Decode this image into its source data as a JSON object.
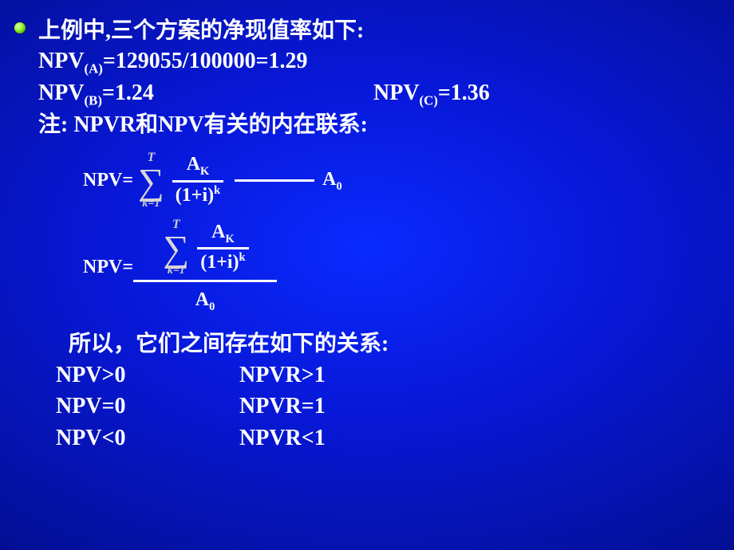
{
  "lines": {
    "intro": "上例中,三个方案的净现值率如下:",
    "npv_a_label": "NPV",
    "npv_a_sub": "(A)",
    "npv_a_value": "=129055/100000=1.29",
    "npv_b_label": "NPV",
    "npv_b_sub": "(B)",
    "npv_b_value": "=1.24",
    "npv_c_label": "NPV",
    "npv_c_sub": "(C)",
    "npv_c_value": "=1.36",
    "note": "注: NPVR和NPV有关的内在联系:"
  },
  "formula": {
    "lhs": "NPV=",
    "sigma_top": "T",
    "sigma_sym": "∑",
    "sigma_bot": "k=1",
    "frac_num_base": "A",
    "frac_num_sub": "K",
    "frac_den1": "(1+i)",
    "frac_den_sup": "k",
    "minus_a0_base": "A",
    "minus_a0_sub": "0"
  },
  "formula2": {
    "lhs": "NPV=",
    "bottom_base": "A",
    "bottom_sub": "0"
  },
  "conclusion": "所以，它们之间存在如下的关系:",
  "relations": [
    {
      "l": "NPV>0",
      "r": "NPVR>1"
    },
    {
      "l": "NPV=0",
      "r": "NPVR=1"
    },
    {
      "l": "NPV<0",
      "r": "NPVR<1"
    }
  ],
  "colors": {
    "text": "#ffffff",
    "sigma": "#d8d8d8",
    "sigma_sub": "#d0d0d0",
    "bullet_gradient_light": "#dfffb0",
    "bullet_gradient_mid": "#9fff40",
    "bullet_gradient_dark": "#2f6f00",
    "bg_center": "#0a2aff",
    "bg_edge": "#000033"
  }
}
